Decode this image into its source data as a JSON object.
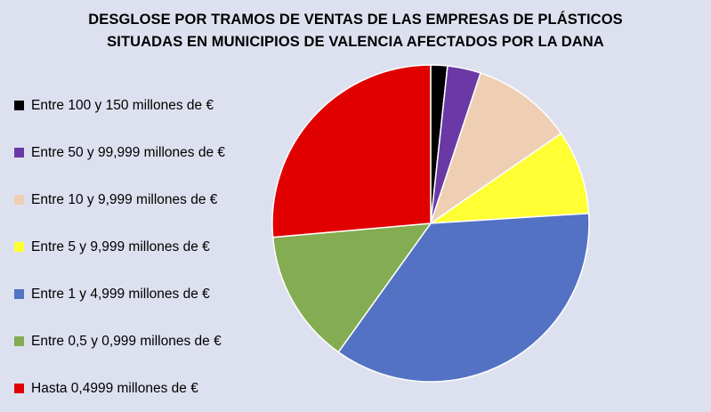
{
  "chart_data": {
    "type": "pie",
    "title": [
      "DESGLOSE POR TRAMOS DE VENTAS DE LAS EMPRESAS DE PLÁSTICOS",
      "SITUADAS EN MUNICIPIOS DE VALENCIA AFECTADOS POR LA DANA"
    ],
    "legend_position": "left",
    "slices": [
      {
        "label": "Entre 100 y 150 millones de €",
        "value": 1.7,
        "color": "#000000"
      },
      {
        "label": "Entre 50 y 99,999 millones de €",
        "value": 3.4,
        "color": "#6a39a6"
      },
      {
        "label": "Entre 10 y 9,999 millones de €",
        "value": 10.3,
        "color": "#eecfb3"
      },
      {
        "label": "Entre 5 y 9,999 millones de €",
        "value": 8.6,
        "color": "#ffff33"
      },
      {
        "label": "Entre 1 y 4,999 millones de €",
        "value": 35.9,
        "color": "#5472c4"
      },
      {
        "label": "Entre 0,5 y 0,999 millones de €",
        "value": 13.7,
        "color": "#84ac52"
      },
      {
        "label": "Hasta 0,4999 millones de €",
        "value": 26.4,
        "color": "#e10000"
      }
    ]
  }
}
